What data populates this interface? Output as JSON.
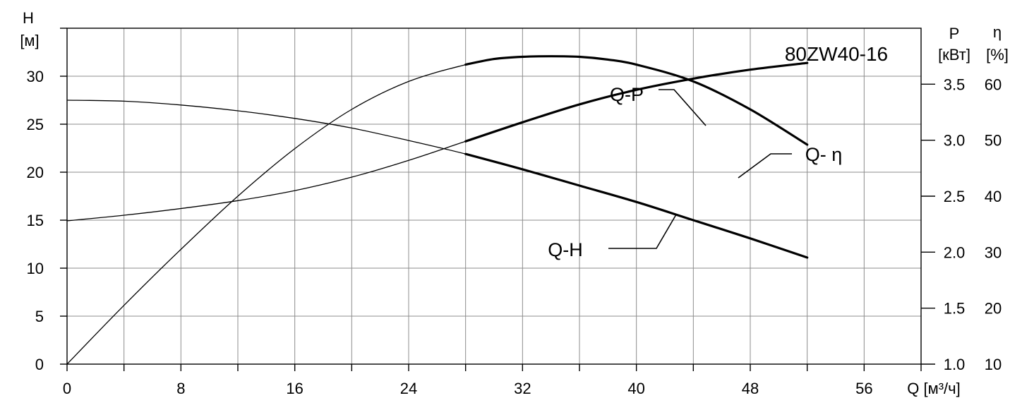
{
  "chart_data": {
    "type": "line",
    "title": "80ZW40-16",
    "x_axis": {
      "label": "Q [м³/ч]",
      "range": [
        0,
        60
      ],
      "ticks": [
        0,
        8,
        16,
        24,
        32,
        40,
        48,
        56
      ],
      "grid_step": 4
    },
    "y_left": {
      "label_symbol": "H",
      "label_unit": "[м]",
      "range": [
        0,
        35
      ],
      "ticks": [
        0,
        5,
        10,
        15,
        20,
        25,
        30
      ]
    },
    "y_right_power": {
      "label_symbol": "P",
      "label_unit": "[кВт]",
      "range": [
        1.0,
        4.0
      ],
      "ticks": [
        1.0,
        1.5,
        2.0,
        2.5,
        3.0,
        3.5
      ]
    },
    "y_right_eff": {
      "label_symbol": "η",
      "label_unit": "[%]",
      "range": [
        10,
        70
      ],
      "ticks": [
        10,
        20,
        30,
        40,
        50,
        60
      ]
    },
    "grid": true,
    "series": [
      {
        "name": "Q-H",
        "axis": "H",
        "x": [
          0,
          4,
          8,
          12,
          16,
          20,
          24,
          28,
          32,
          36,
          40,
          44,
          48,
          52
        ],
        "y": [
          27.5,
          27.4,
          27.0,
          26.4,
          25.6,
          24.6,
          23.3,
          21.9,
          20.3,
          18.6,
          16.9,
          15.0,
          13.1,
          11.1
        ],
        "thick_from_x": 28
      },
      {
        "name": "Q-P",
        "axis": "P",
        "x": [
          0,
          4,
          8,
          12,
          16,
          20,
          24,
          28,
          32,
          36,
          40,
          44,
          48,
          52
        ],
        "y": [
          2.28,
          2.33,
          2.39,
          2.46,
          2.55,
          2.67,
          2.82,
          2.99,
          3.16,
          3.32,
          3.45,
          3.55,
          3.63,
          3.69
        ],
        "thick_from_x": 28
      },
      {
        "name": "Q- η",
        "axis": "eta",
        "x": [
          0,
          4,
          8,
          12,
          16,
          20,
          24,
          28,
          30,
          32,
          34,
          36,
          38,
          40,
          44,
          48,
          52
        ],
        "y": [
          10,
          20.5,
          30.5,
          40,
          48.5,
          55.5,
          60.5,
          63.5,
          64.5,
          64.9,
          65.0,
          64.9,
          64.4,
          63.5,
          60.5,
          55.5,
          49.2
        ],
        "thick_from_x": 28
      }
    ],
    "annotations": [
      {
        "text": "Q-P"
      },
      {
        "text": "Q- η"
      },
      {
        "text": "Q-H"
      }
    ]
  }
}
